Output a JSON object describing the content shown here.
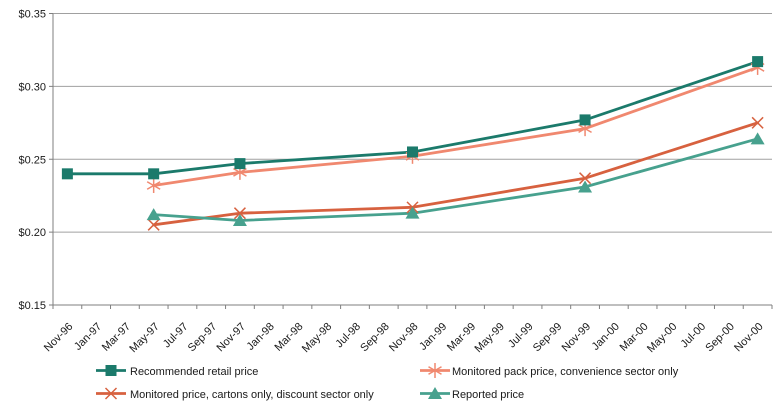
{
  "chart_style": {
    "background": "#FFFFFF",
    "axis_color": "#7F7F7F",
    "grid_color": "#A0A0A0",
    "text_color": "#1A1A1A"
  },
  "chart_data": {
    "type": "line",
    "title": "",
    "xlabel": "",
    "ylabel": "",
    "grid": true,
    "legend_position": "bottom",
    "ylim": [
      0.15,
      0.35
    ],
    "y_step": 0.05,
    "y_ticks": [
      "$0.15",
      "$0.20",
      "$0.25",
      "$0.30",
      "$0.35"
    ],
    "categories": [
      "Nov-96",
      "Jan-97",
      "Mar-97",
      "May-97",
      "Jul-97",
      "Sep-97",
      "Nov-97",
      "Jan-98",
      "Mar-98",
      "May-98",
      "Jul-98",
      "Sep-98",
      "Nov-98",
      "Jan-99",
      "Mar-99",
      "May-99",
      "Jul-99",
      "Sep-99",
      "Nov-99",
      "Jan-00",
      "Mar-00",
      "May-00",
      "Jul-00",
      "Sep-00",
      "Nov-00"
    ],
    "series": [
      {
        "name": "Recommended retail price",
        "color": "#1B7A6B",
        "marker": "square",
        "points": [
          [
            "Nov-96",
            0.24
          ],
          [
            "May-97",
            0.24
          ],
          [
            "Nov-97",
            0.247
          ],
          [
            "Nov-98",
            0.255
          ],
          [
            "Nov-99",
            0.277
          ],
          [
            "Nov-00",
            0.317
          ]
        ]
      },
      {
        "name": "Monitored pack price, convenience sector only",
        "color": "#F0886F",
        "marker": "asterisk",
        "points": [
          [
            "May-97",
            0.232
          ],
          [
            "Nov-97",
            0.241
          ],
          [
            "Nov-98",
            0.252
          ],
          [
            "Nov-99",
            0.271
          ],
          [
            "Nov-00",
            0.313
          ]
        ]
      },
      {
        "name": "Monitored price, cartons only, discount sector only",
        "color": "#D7613F",
        "marker": "x",
        "points": [
          [
            "May-97",
            0.205
          ],
          [
            "Nov-97",
            0.213
          ],
          [
            "Nov-98",
            0.217
          ],
          [
            "Nov-99",
            0.237
          ],
          [
            "Nov-00",
            0.275
          ]
        ]
      },
      {
        "name": "Reported price",
        "color": "#47A18E",
        "marker": "triangle-up",
        "points": [
          [
            "May-97",
            0.212
          ],
          [
            "Nov-97",
            0.208
          ],
          [
            "Nov-98",
            0.213
          ],
          [
            "Nov-99",
            0.231
          ],
          [
            "Nov-00",
            0.264
          ]
        ]
      }
    ]
  }
}
